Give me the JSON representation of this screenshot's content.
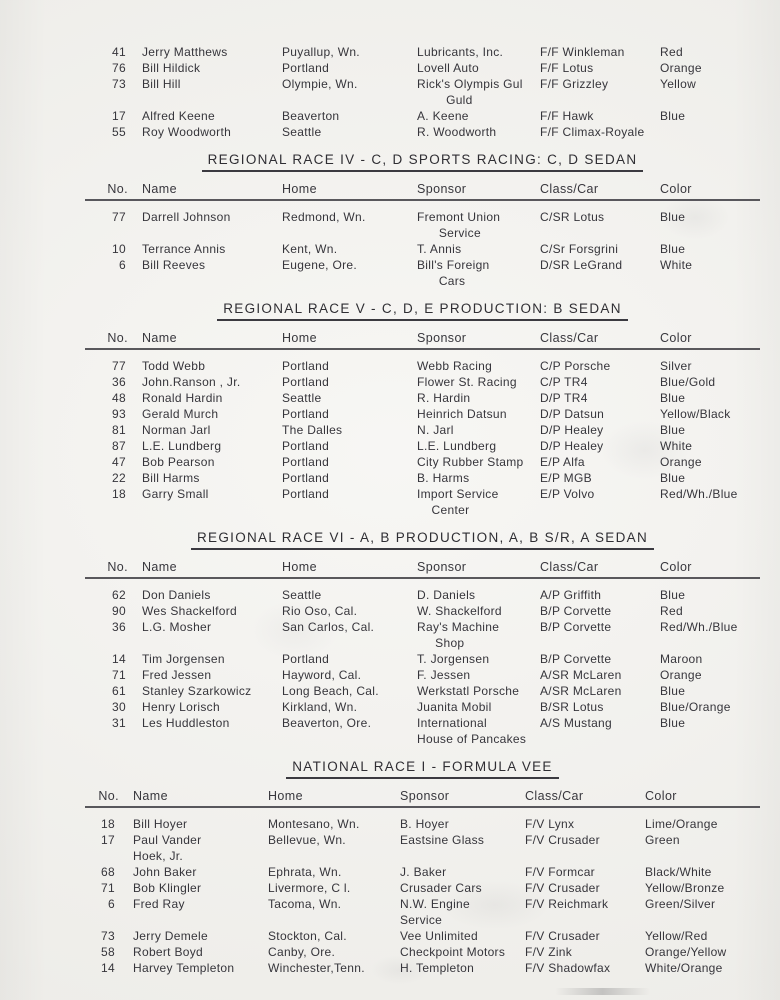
{
  "document": {
    "columns": {
      "no": "No.",
      "name": "Name",
      "home": "Home",
      "sponsor": "Sponsor",
      "class_car": "Class/Car",
      "color": "Color"
    },
    "continuation": {
      "rows": [
        {
          "no": "41",
          "name": "Jerry Matthews",
          "home": "Puyallup, Wn.",
          "sponsor": "Lubricants, Inc.",
          "class_car": "F/F Winkleman",
          "color": "Red"
        },
        {
          "no": "76",
          "name": "Bill Hildick",
          "home": "Portland",
          "sponsor": "Lovell Auto",
          "class_car": "F/F Lotus",
          "color": "Orange"
        },
        {
          "no": "73",
          "name": "Bill Hill",
          "home": "Olympie, Wn.",
          "sponsor": "Rick's Olympis Gul\n        Guld",
          "class_car": "F/F Grizzley",
          "color": "Yellow"
        },
        {
          "no": "17",
          "name": "Alfred Keene",
          "home": "Beaverton",
          "sponsor": "A. Keene",
          "class_car": "F/F Hawk",
          "color": "Blue"
        },
        {
          "no": "55",
          "name": "Roy Woodworth",
          "home": "Seattle",
          "sponsor": "R. Woodworth",
          "class_car": "F/F Climax-Royale",
          "color": ""
        }
      ]
    },
    "sections": [
      {
        "title": "REGIONAL RACE IV - C, D SPORTS RACING: C, D SEDAN",
        "rows": [
          {
            "no": "77",
            "name": "Darrell Johnson",
            "home": "Redmond, Wn.",
            "sponsor": "Fremont Union\n      Service",
            "class_car": "C/SR Lotus",
            "color": "Blue"
          },
          {
            "no": "10",
            "name": "Terrance Annis",
            "home": "Kent, Wn.",
            "sponsor": "T. Annis",
            "class_car": "C/Sr Forsgrini",
            "color": "Blue"
          },
          {
            "no": "6",
            "name": "Bill Reeves",
            "home": "Eugene, Ore.",
            "sponsor": "Bill's Foreign\n      Cars",
            "class_car": "D/SR LeGrand",
            "color": "White"
          }
        ]
      },
      {
        "title": "REGIONAL RACE V - C, D, E PRODUCTION: B SEDAN",
        "rows": [
          {
            "no": "77",
            "name": "Todd Webb",
            "home": "Portland",
            "sponsor": "Webb Racing",
            "class_car": "C/P Porsche",
            "color": "Silver"
          },
          {
            "no": "36",
            "name": "John.Ranson , Jr.",
            "home": "Portland",
            "sponsor": "Flower St. Racing",
            "class_car": "C/P TR4",
            "color": "Blue/Gold"
          },
          {
            "no": "48",
            "name": "Ronald Hardin",
            "home": "Seattle",
            "sponsor": "R. Hardin",
            "class_car": "D/P TR4",
            "color": "Blue"
          },
          {
            "no": "93",
            "name": "Gerald Murch",
            "home": "Portland",
            "sponsor": "Heinrich Datsun",
            "class_car": "D/P Datsun",
            "color": "Yellow/Black"
          },
          {
            "no": "81",
            "name": "Norman Jarl",
            "home": "The Dalles",
            "sponsor": "N. Jarl",
            "class_car": "D/P Healey",
            "color": "Blue"
          },
          {
            "no": "87",
            "name": "L.E. Lundberg",
            "home": "Portland",
            "sponsor": "L.E. Lundberg",
            "class_car": "D/P Healey",
            "color": "White"
          },
          {
            "no": "47",
            "name": "Bob Pearson",
            "home": "Portland",
            "sponsor": "City Rubber Stamp",
            "class_car": "E/P Alfa",
            "color": "Orange"
          },
          {
            "no": "22",
            "name": "Bill Harms",
            "home": "Portland",
            "sponsor": "B. Harms",
            "class_car": "E/P MGB",
            "color": "Blue"
          },
          {
            "no": "18",
            "name": "Garry Small",
            "home": "Portland",
            "sponsor": "Import Service\n    Center",
            "class_car": "E/P Volvo",
            "color": "Red/Wh./Blue"
          }
        ]
      },
      {
        "title": "REGIONAL RACE VI - A, B PRODUCTION, A, B S/R, A SEDAN",
        "rows": [
          {
            "no": "62",
            "name": "Don Daniels",
            "home": "Seattle",
            "sponsor": "D. Daniels",
            "class_car": "A/P Griffith",
            "color": "Blue"
          },
          {
            "no": "90",
            "name": "Wes Shackelford",
            "home": "Rio Oso, Cal.",
            "sponsor": "W. Shackelford",
            "class_car": "B/P Corvette",
            "color": "Red"
          },
          {
            "no": "36",
            "name": "L.G. Mosher",
            "home": "San Carlos, Cal.",
            "sponsor": "Ray's Machine\n     Shop",
            "class_car": "B/P Corvette",
            "color": "Red/Wh./Blue"
          },
          {
            "no": "14",
            "name": "Tim Jorgensen",
            "home": "Portland",
            "sponsor": "T. Jorgensen",
            "class_car": "B/P Corvette",
            "color": "Maroon"
          },
          {
            "no": "71",
            "name": "Fred Jessen",
            "home": "Hayword, Cal.",
            "sponsor": "F. Jessen",
            "class_car": "A/SR McLaren",
            "color": "Orange"
          },
          {
            "no": "61",
            "name": "Stanley Szarkowicz",
            "home": "Long Beach, Cal.",
            "sponsor": "Werkstatl Porsche",
            "class_car": "A/SR McLaren",
            "color": "Blue"
          },
          {
            "no": "30",
            "name": "Henry Lorisch",
            "home": "Kirkland, Wn.",
            "sponsor": "Juanita Mobil",
            "class_car": "B/SR Lotus",
            "color": "Blue/Orange"
          },
          {
            "no": "31",
            "name": "Les Huddleston",
            "home": "Beaverton, Ore.",
            "sponsor": "International\nHouse of Pancakes",
            "class_car": "A/S Mustang",
            "color": "Blue"
          }
        ]
      },
      {
        "title": "NATIONAL RACE I - FORMULA VEE",
        "rows": [
          {
            "no": "18",
            "name": "Bill Hoyer",
            "home": "Montesano, Wn.",
            "sponsor": "B. Hoyer",
            "class_car": "F/V Lynx",
            "color": "Lime/Orange"
          },
          {
            "no": "17",
            "name": "Paul Vander\nHoek, Jr.",
            "home": "Bellevue, Wn.",
            "sponsor": "Eastsine Glass",
            "class_car": "F/V Crusader",
            "color": "Green"
          },
          {
            "no": "68",
            "name": "John Baker",
            "home": "Ephrata, Wn.",
            "sponsor": "J. Baker",
            "class_car": "F/V Formcar",
            "color": "Black/White"
          },
          {
            "no": "71",
            "name": "Bob Klingler",
            "home": "Livermore, C l.",
            "sponsor": "Crusader Cars",
            "class_car": "F/V Crusader",
            "color": "Yellow/Bronze"
          },
          {
            "no": "6",
            "name": "Fred Ray",
            "home": "Tacoma, Wn.",
            "sponsor": "N.W. Engine\nService",
            "class_car": "F/V Reichmark",
            "color": "Green/Silver"
          },
          {
            "no": "73",
            "name": "Jerry Demele",
            "home": "Stockton, Cal.",
            "sponsor": "Vee Unlimited",
            "class_car": "F/V Crusader",
            "color": "Yellow/Red"
          },
          {
            "no": "58",
            "name": "Robert Boyd",
            "home": "Canby, Ore.",
            "sponsor": "Checkpoint Motors",
            "class_car": "F/V Zink",
            "color": "Orange/Yellow"
          },
          {
            "no": "14",
            "name": "Harvey Templeton",
            "home": "Winchester,Tenn.",
            "sponsor": "H. Templeton",
            "class_car": "F/V Shadowfax",
            "color": "White/Orange"
          }
        ]
      }
    ]
  }
}
